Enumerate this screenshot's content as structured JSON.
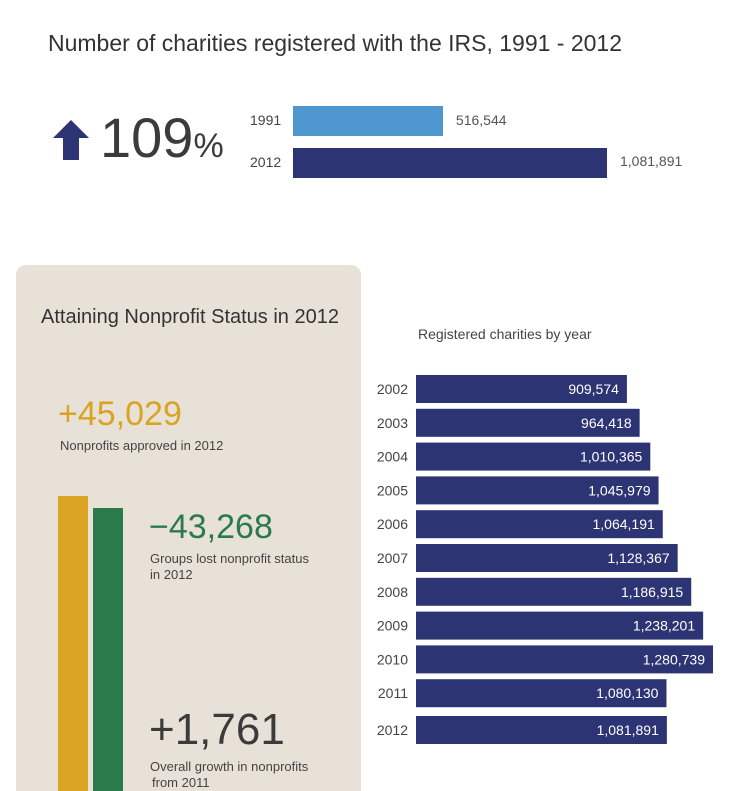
{
  "title": "Number of charities registered with the IRS, 1991 - 2012",
  "growth": {
    "value": "109",
    "unit": "%",
    "icon": "arrow-up-icon"
  },
  "comparison": [
    {
      "year": "1991",
      "value": 516544,
      "label": "516,544",
      "color": "#4e97cf"
    },
    {
      "year": "2012",
      "value": 1081891,
      "label": "1,081,891",
      "color": "#2d3473"
    }
  ],
  "panel": {
    "title": "Attaining Nonprofit Status in 2012",
    "approved": {
      "value": "+45,029",
      "caption": "Nonprofits approved in 2012",
      "color": "#d9a421"
    },
    "lost": {
      "value": "−43,268",
      "caption_line1": "Groups lost nonprofit status",
      "caption_line2": "in 2012",
      "color": "#2a7a4b"
    },
    "growth": {
      "value": "+1,761",
      "caption_line1": "Overall growth in nonprofits",
      "caption_line2": "from 2011",
      "color": "#3b3b3b"
    },
    "bars": [
      {
        "name": "approved",
        "value": 45029,
        "color": "#d9a421"
      },
      {
        "name": "lost",
        "value": 43268,
        "color": "#2a7a4b"
      }
    ]
  },
  "chart_data": [
    {
      "type": "bar",
      "orientation": "horizontal",
      "categories": [
        "1991",
        "2012"
      ],
      "values": [
        516544,
        1081891
      ],
      "title": "Number of charities registered with the IRS, 1991 - 2012"
    },
    {
      "type": "bar",
      "orientation": "horizontal",
      "title": "Registered charities by year",
      "categories": [
        "2002",
        "2003",
        "2004",
        "2005",
        "2006",
        "2007",
        "2008",
        "2009",
        "2010",
        "2011",
        "2012"
      ],
      "values": [
        909574,
        964418,
        1010365,
        1045979,
        1064191,
        1128367,
        1186915,
        1238201,
        1280739,
        1080130,
        1081891
      ],
      "labels": [
        "909,574",
        "964,418",
        "1,010,365",
        "1,045,979",
        "1,064,191",
        "1,128,367",
        "1,186,915",
        "1,238,201",
        "1,280,739",
        "1,080,130",
        "1,081,891"
      ],
      "color": "#2d3473"
    }
  ]
}
